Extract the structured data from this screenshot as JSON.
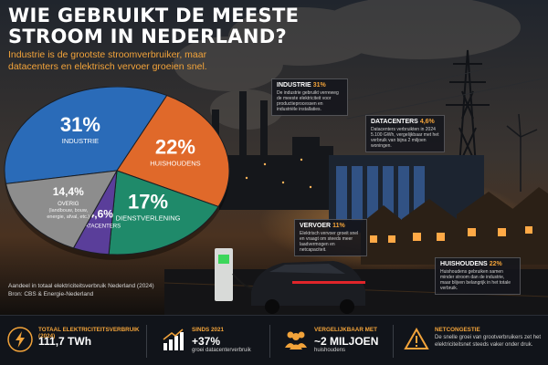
{
  "title": "WIE GEBRUIKT DE MEESTE STROOM IN NEDERLAND?",
  "subtitle": "Industrie is de grootste stroomverbruiker, maar datacenters en elektrisch vervoer groeien snel.",
  "chart_data": {
    "type": "pie",
    "slices": [
      {
        "pct_label": "31%",
        "name": "INDUSTRIE",
        "value": 31,
        "color": "#2a6bb8"
      },
      {
        "pct_label": "22%",
        "name": "HUISHOUDENS",
        "value": 22,
        "color": "#e0692a"
      },
      {
        "pct_label": "17%",
        "name": "DIENSTVERLENING",
        "value": 17,
        "color": "#1f8a6a"
      },
      {
        "pct_label": "4,6%",
        "name": "DATACENTERS",
        "value": 4.6,
        "color": "#5a3e9a"
      },
      {
        "pct_label": "14,4%",
        "name": "OVERIG",
        "sub": "(landbouw, bouw, energie, afval, etc.)",
        "value": 14.4,
        "color": "#8d8d8d"
      }
    ]
  },
  "caption": {
    "line1": "Aandeel in totaal elektriciteitsverbruik Nederland (2024)",
    "line2": "Bron: CBS & Energie-Nederland"
  },
  "annotations": {
    "industrie": {
      "label": "INDUSTRIE",
      "pct": "31%",
      "text": "De industrie gebruikt verreweg de meeste elektriciteit voor productieprocessen en industriële installaties."
    },
    "datacenters": {
      "label": "DATACENTERS",
      "pct": "4,6%",
      "text": "Datacenters verbruikten in 2024 5.100 GWh, vergelijkbaar met het verbruik van bijna 2 miljoen woningen."
    },
    "vervoer": {
      "label": "VERVOER",
      "pct": "11%",
      "text": "Elektrisch vervoer groeit snel en vraagt om steeds meer laadvermogen en netcapaciteit."
    },
    "huishoudens": {
      "label": "HUISHOUDENS",
      "pct": "22%",
      "text": "Huishoudens gebruiken samen minder stroom dan de industrie, maar blijven belangrijk in het totale verbruik."
    }
  },
  "stats": [
    {
      "label": "TOTAAL ELEKTRICITEITSVERBRUIK (2024)",
      "value": "111,7 TWh",
      "sub": "",
      "icon": "lightning-icon"
    },
    {
      "label": "SINDS 2021",
      "value": "+37%",
      "sub": "groei datacenterverbruik",
      "icon": "growth-chart-icon"
    },
    {
      "label": "VERGELIJKBAAR MET",
      "value": "~2 MILJOEN",
      "sub": "huishoudens",
      "icon": "people-icon"
    },
    {
      "label": "NETCONGESTIE",
      "value": "",
      "sub": "De snelle groei van grootverbruikers zet het elektriciteitsnet steeds vaker onder druk.",
      "icon": "warning-icon"
    }
  ],
  "colors": {
    "accent": "#f2a33a"
  }
}
